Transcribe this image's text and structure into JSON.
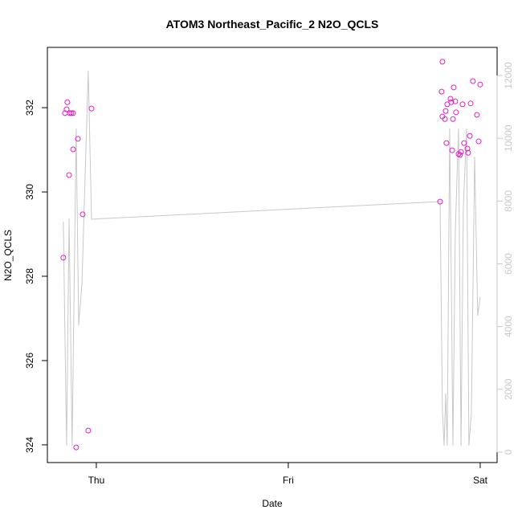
{
  "chart_data": {
    "type": "scatter",
    "title": "ATOM3 Northeast_Pacific_2 N2O_QCLS",
    "xlabel": "Date",
    "ylabel": "N2O_QCLS",
    "xlim": [
      -0.255,
      2.088
    ],
    "xticks": [
      {
        "value": 0,
        "label": "Thu"
      },
      {
        "value": 1,
        "label": "Fri"
      },
      {
        "value": 2,
        "label": "Sat"
      }
    ],
    "ylim": [
      323.58,
      333.43
    ],
    "yticks": [
      324,
      326,
      328,
      330,
      332
    ],
    "y2lim": [
      -333,
      12896
    ],
    "y2ticks": [
      0,
      2000,
      4000,
      6000,
      8000,
      10000,
      12000
    ],
    "series": [
      {
        "type": "line",
        "axis": "y2",
        "color": "#c8c8c8",
        "x": [
          -0.172,
          -0.155,
          -0.142,
          -0.126,
          -0.105,
          -0.092,
          -0.075,
          -0.042,
          -0.025,
          1.791,
          1.803,
          1.812,
          1.82,
          1.828,
          1.841,
          1.858,
          1.87,
          1.887,
          1.9,
          1.912,
          1.929,
          1.941,
          1.954,
          1.971,
          1.987,
          2.0
        ],
        "values": [
          7344,
          205,
          7446,
          205,
          10312,
          4043,
          5374,
          12155,
          7421,
          7984,
          1356,
          205,
          1868,
          205,
          10312,
          205,
          6986,
          10312,
          205,
          7753,
          10312,
          205,
          1228,
          9417,
          4350,
          4939
        ]
      },
      {
        "type": "scatter",
        "color": "#e020c0",
        "x": [
          -0.172,
          -0.163,
          -0.155,
          -0.151,
          -0.142,
          -0.138,
          -0.13,
          -0.121,
          -0.121,
          -0.105,
          -0.096,
          -0.071,
          -0.042,
          -0.025,
          1.791,
          1.799,
          1.803,
          1.803,
          1.816,
          1.82,
          1.824,
          1.828,
          1.845,
          1.849,
          1.854,
          1.858,
          1.862,
          1.87,
          1.874,
          1.887,
          1.895,
          1.9,
          1.908,
          1.916,
          1.933,
          1.937,
          1.946,
          1.95,
          1.962,
          1.983,
          1.992,
          2.0
        ],
        "values": [
          328.44,
          331.87,
          331.96,
          332.13,
          330.4,
          331.87,
          331.87,
          331.87,
          331.01,
          323.94,
          331.26,
          329.47,
          324.34,
          331.98,
          329.77,
          332.38,
          333.09,
          331.79,
          331.73,
          331.92,
          331.16,
          332.08,
          332.21,
          332.13,
          330.99,
          331.73,
          332.48,
          332.15,
          331.89,
          330.9,
          330.88,
          330.95,
          332.08,
          331.16,
          331.03,
          330.93,
          331.33,
          332.1,
          332.63,
          331.83,
          331.2,
          332.55
        ]
      }
    ]
  }
}
